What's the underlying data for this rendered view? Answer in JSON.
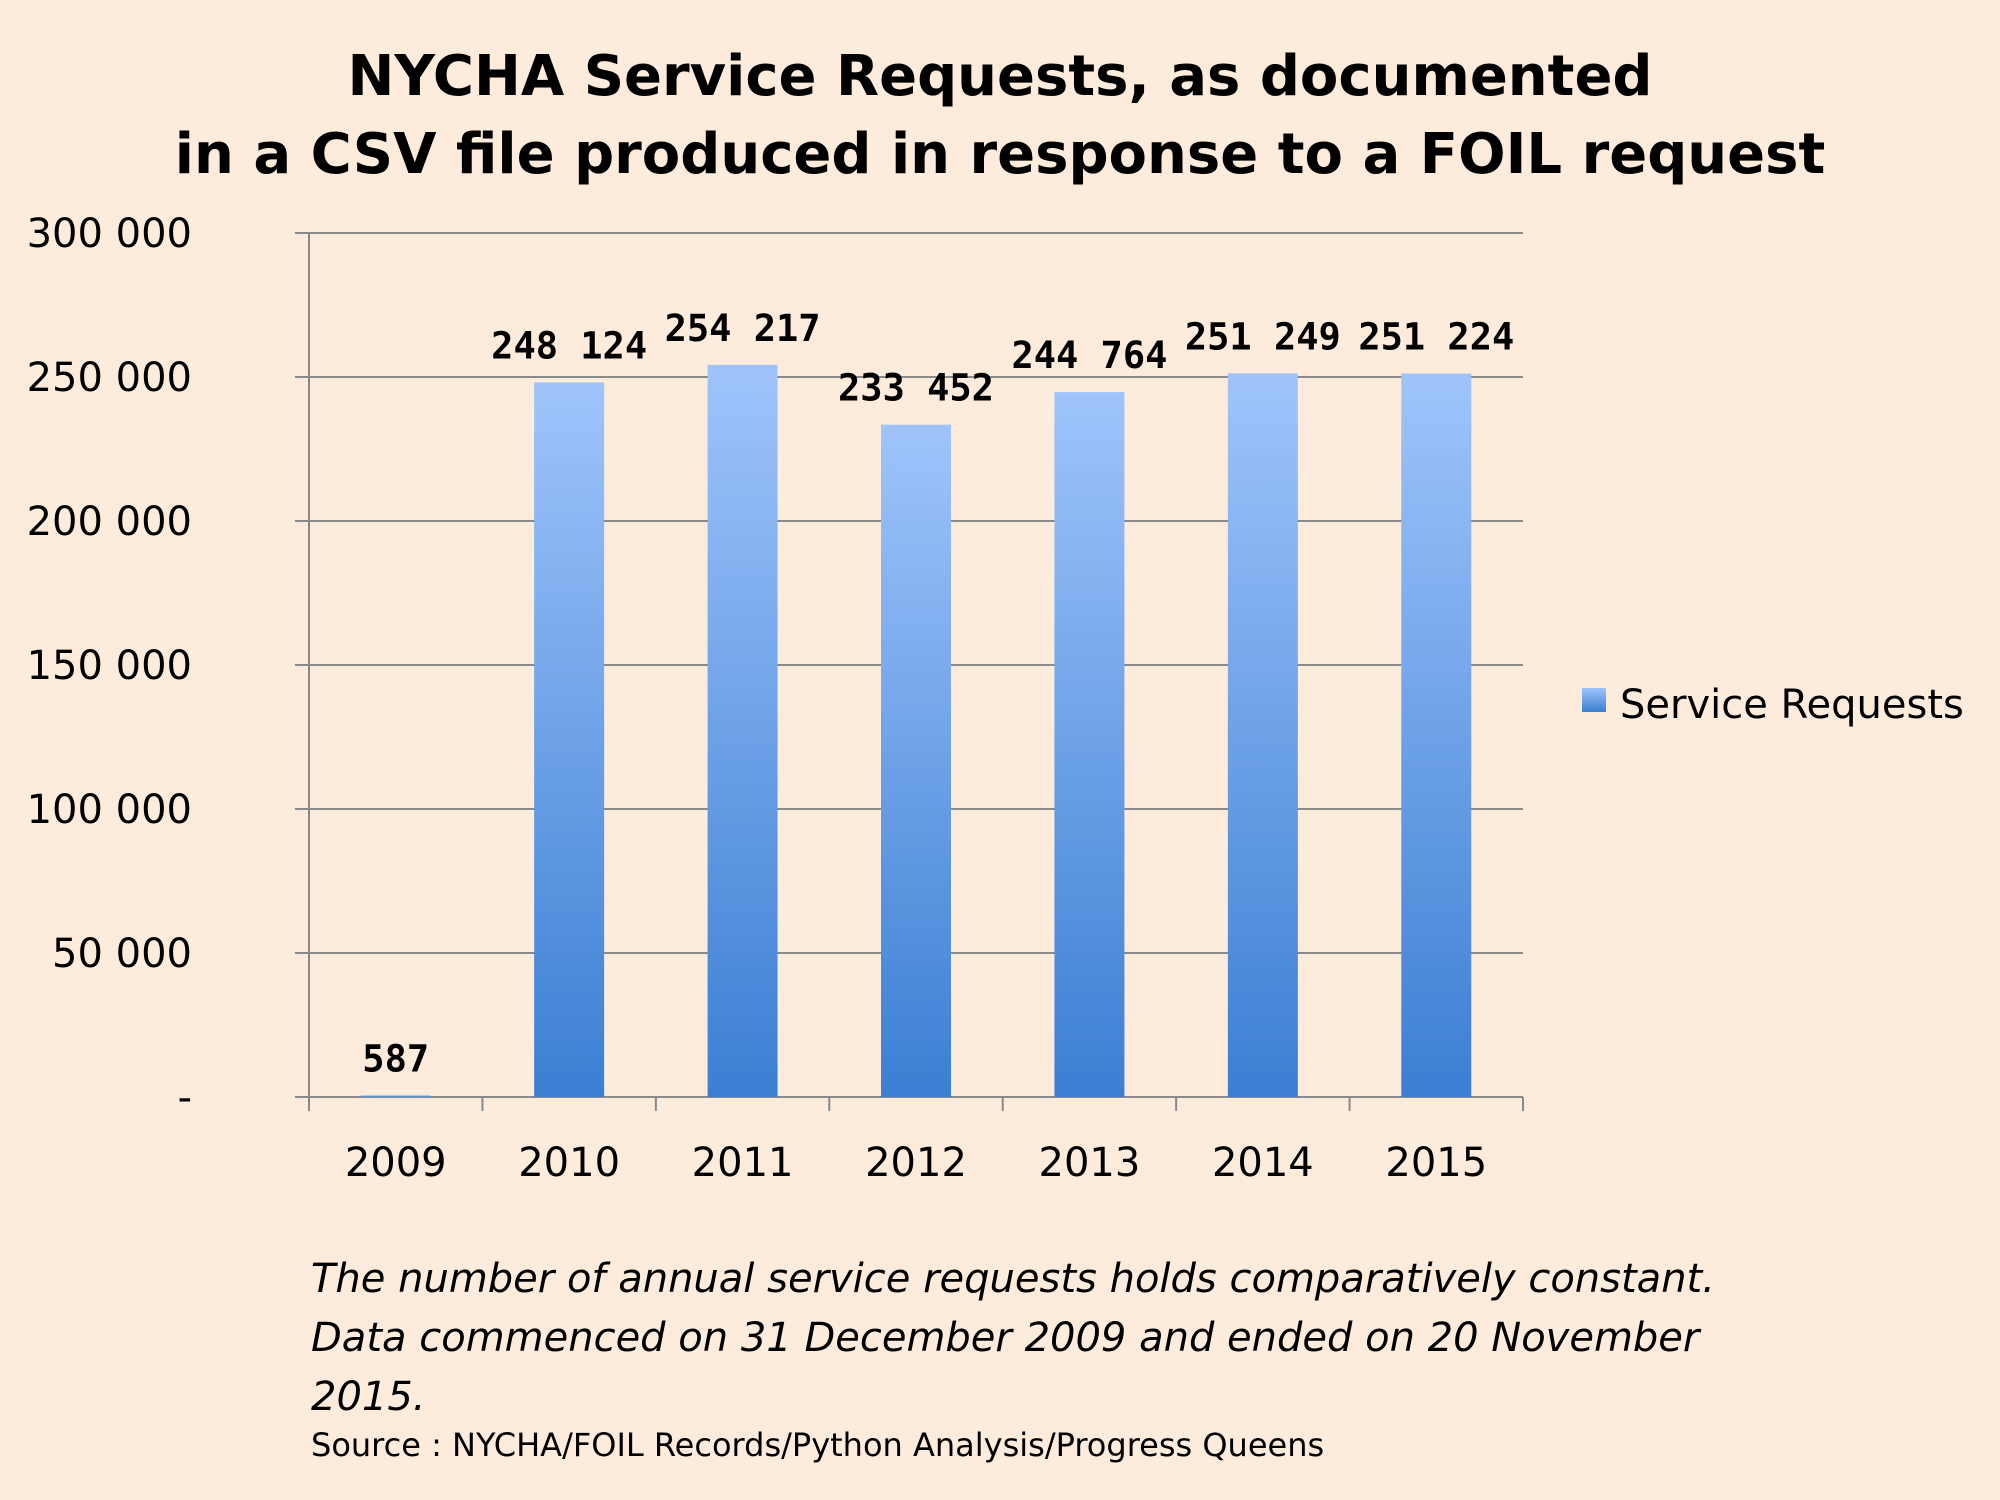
{
  "chart_data": {
    "type": "bar",
    "title": [
      "NYCHA Service Requests, as documented",
      "in a CSV file produced in response to a FOIL request"
    ],
    "categories": [
      "2009",
      "2010",
      "2011",
      "2012",
      "2013",
      "2014",
      "2015"
    ],
    "series": [
      {
        "name": "Service Requests",
        "values": [
          587,
          248124,
          254217,
          233452,
          244764,
          251249,
          251224
        ],
        "value_labels": [
          "587",
          "248 124",
          "254 217",
          "233 452",
          "244 764",
          "251 249",
          "251 224"
        ]
      }
    ],
    "ylim": [
      0,
      300000
    ],
    "yticks": [
      0,
      50000,
      100000,
      150000,
      200000,
      250000,
      300000
    ],
    "ytick_labels": [
      "-",
      "50 000",
      "100 000",
      "150 000",
      "200 000",
      "250 000",
      "300 000"
    ],
    "grid": true,
    "legend": "right",
    "colors": {
      "bar_top": "#9fc4fb",
      "bar_bottom": "#3b7fd3",
      "grid": "#8a8a8a"
    }
  },
  "caption": "The number of annual service requests holds comparatively constant. Data commenced on 31 December 2009 and ended on 20 November 2015.",
  "source": "Source : NYCHA/FOIL Records/Python Analysis/Progress Queens"
}
